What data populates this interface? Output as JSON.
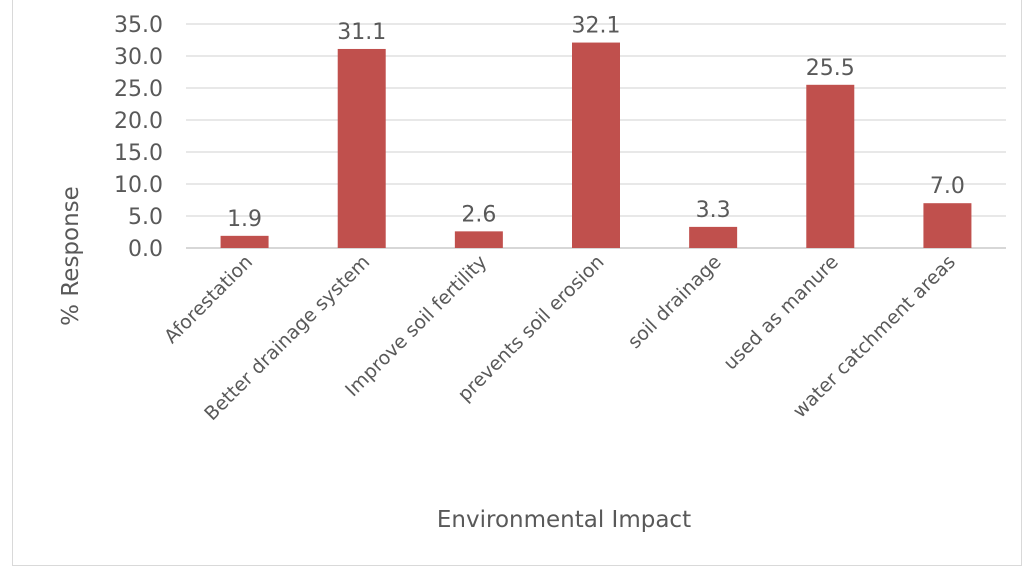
{
  "chart_data": {
    "type": "bar",
    "title": "",
    "xlabel": "Environmental Impact",
    "ylabel": "% Response",
    "ylim": [
      0,
      35
    ],
    "yticks": [
      "0.0",
      "5.0",
      "10.0",
      "15.0",
      "20.0",
      "25.0",
      "30.0",
      "35.0"
    ],
    "grid": true,
    "categories": [
      "Aforestation",
      "Better drainage system",
      "Improve soil fertility",
      "prevents soil erosion",
      "soil drainage",
      "used as manure",
      "water catchment areas"
    ],
    "values": [
      1.9,
      31.1,
      2.6,
      32.1,
      3.3,
      25.5,
      7.0
    ],
    "value_labels": [
      "1.9",
      "31.1",
      "2.6",
      "32.1",
      "3.3",
      "25.5",
      "7.0"
    ],
    "bar_color": "#c0504d"
  }
}
